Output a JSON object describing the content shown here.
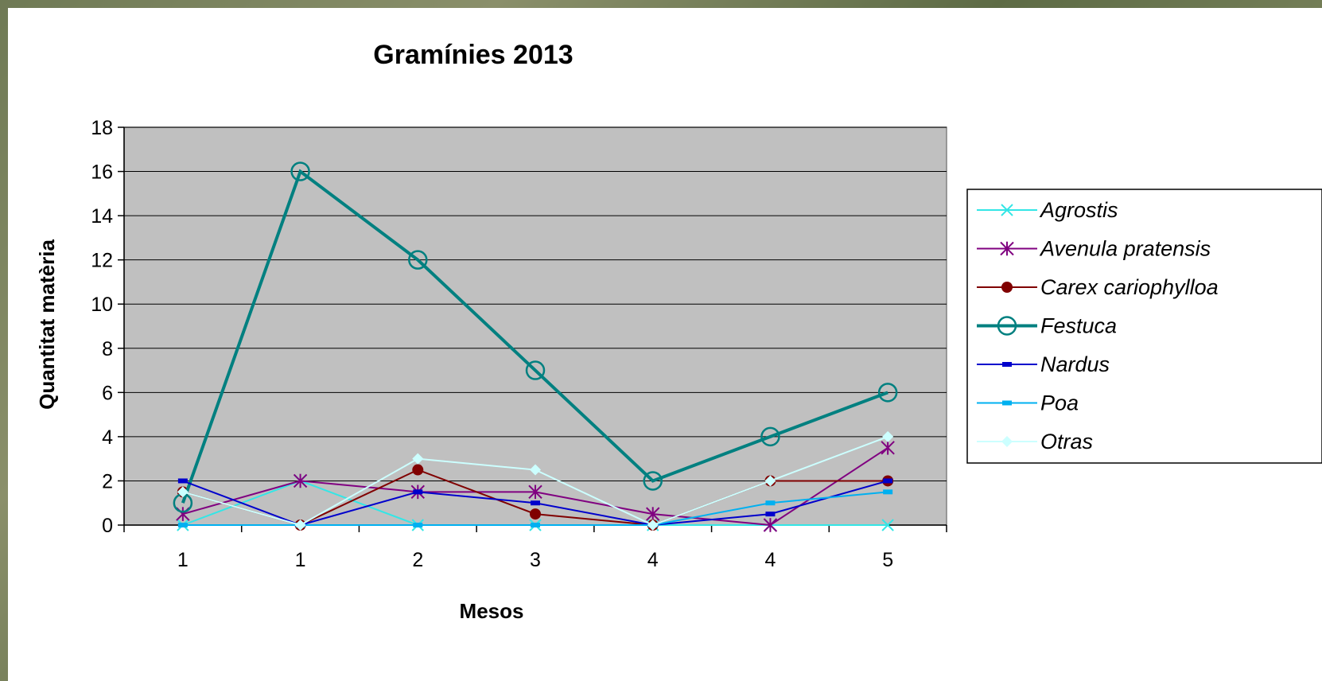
{
  "chart_data": {
    "type": "line",
    "title": "Gramínies 2013",
    "xlabel": "Mesos",
    "ylabel": "Quantitat matèria",
    "categories": [
      "1",
      "1",
      "2",
      "3",
      "4",
      "4",
      "5"
    ],
    "ylim": [
      0,
      18
    ],
    "yticks": [
      0,
      2,
      4,
      6,
      8,
      10,
      12,
      14,
      16,
      18
    ],
    "grid": true,
    "plot_background": "#c0c0c0",
    "legend_position": "right",
    "series": [
      {
        "name": "Agrostis",
        "color": "#33e6e6",
        "marker": "x",
        "values": [
          0,
          2,
          0,
          0,
          0,
          0,
          0
        ]
      },
      {
        "name": "Avenula pratensis",
        "color": "#800080",
        "marker": "asterisk",
        "values": [
          0.5,
          2,
          1.5,
          1.5,
          0.5,
          0,
          3.5
        ]
      },
      {
        "name": "Carex cariophylloa",
        "color": "#800000",
        "marker": "circle-filled",
        "values": [
          1.5,
          0,
          2.5,
          0.5,
          0,
          2,
          2
        ]
      },
      {
        "name": "Festuca",
        "color": "#008080",
        "marker": "circle-open",
        "values": [
          1,
          16,
          12,
          7,
          2,
          4,
          6
        ]
      },
      {
        "name": "Nardus",
        "color": "#0000cc",
        "marker": "dash",
        "values": [
          2,
          0,
          1.5,
          1,
          0,
          0.5,
          2
        ]
      },
      {
        "name": "Poa",
        "color": "#00b0f0",
        "marker": "dash",
        "values": [
          0,
          0,
          0,
          0,
          0,
          1,
          1.5
        ]
      },
      {
        "name": "Otras",
        "color": "#ccffff",
        "marker": "diamond",
        "values": [
          1.5,
          0,
          3,
          2.5,
          0,
          2,
          4
        ]
      }
    ]
  }
}
